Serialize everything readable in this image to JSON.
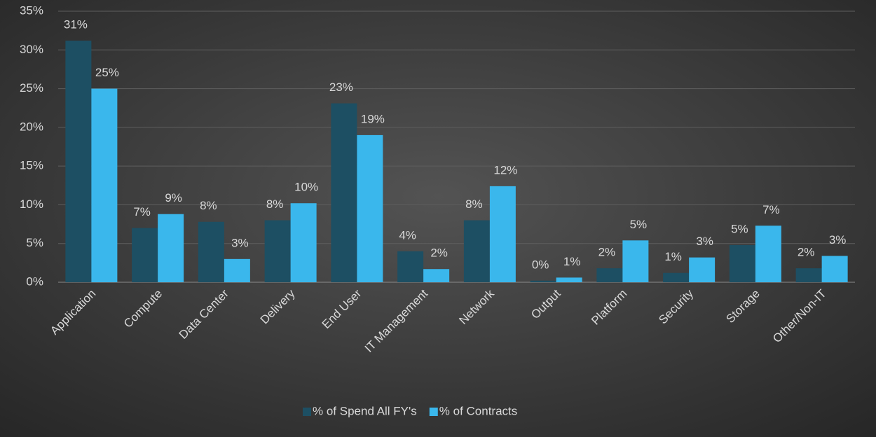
{
  "chart_data": {
    "type": "bar",
    "categories": [
      "Application",
      "Compute",
      "Data Center",
      "Delivery",
      "End User",
      "IT Management",
      "Network",
      "Output",
      "Platform",
      "Security",
      "Storage",
      "Other/Non-IT"
    ],
    "series": [
      {
        "name": "% of Spend All FY's",
        "color": "#1d4f63",
        "values": [
          31.2,
          7.0,
          7.8,
          8.0,
          23.1,
          4.0,
          8.0,
          0.2,
          1.8,
          1.2,
          4.8,
          1.8
        ],
        "value_labels": [
          "31%",
          "7%",
          "8%",
          "8%",
          "23%",
          "4%",
          "8%",
          "0%",
          "2%",
          "1%",
          "5%",
          "2%"
        ]
      },
      {
        "name": "% of Contracts",
        "color": "#3ab7ec",
        "values": [
          25.0,
          8.8,
          3.0,
          10.2,
          19.0,
          1.7,
          12.4,
          0.6,
          5.4,
          3.2,
          7.3,
          3.4
        ],
        "value_labels": [
          "25%",
          "9%",
          "3%",
          "10%",
          "19%",
          "2%",
          "12%",
          "1%",
          "5%",
          "3%",
          "7%",
          "3%"
        ]
      }
    ],
    "ylim": [
      0,
      35
    ],
    "yticks": [
      {
        "value": 0,
        "label": "0%"
      },
      {
        "value": 5,
        "label": "5%"
      },
      {
        "value": 10,
        "label": "10%"
      },
      {
        "value": 15,
        "label": "15%"
      },
      {
        "value": 20,
        "label": "20%"
      },
      {
        "value": 25,
        "label": "25%"
      },
      {
        "value": 30,
        "label": "30%"
      },
      {
        "value": 35,
        "label": "35%"
      }
    ],
    "grid": true,
    "legend": "bottom"
  }
}
